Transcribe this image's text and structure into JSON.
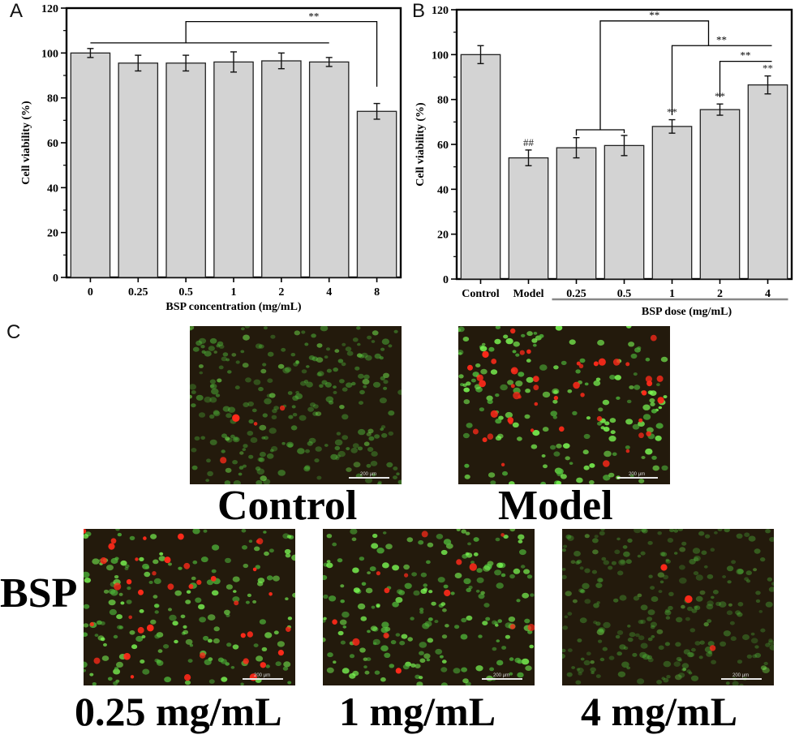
{
  "chart_data": [
    {
      "panel": "A",
      "type": "bar",
      "categories": [
        "0",
        "0.25",
        "0.5",
        "1",
        "2",
        "4",
        "8"
      ],
      "values": [
        100,
        95.5,
        95.5,
        96,
        96.5,
        96,
        74
      ],
      "errors": [
        2,
        3.5,
        3.5,
        4.5,
        3.5,
        2,
        3.5
      ],
      "xlabel": "BSP concentration (mg/mL)",
      "ylabel": "Cell viability (%)",
      "ylim": [
        0,
        120
      ],
      "yticks": [
        "0",
        "20",
        "40",
        "60",
        "80",
        "100",
        "120"
      ],
      "annotations": [
        "**"
      ]
    },
    {
      "panel": "B",
      "type": "bar",
      "categories": [
        "Control",
        "Model",
        "0.25",
        "0.5",
        "1",
        "2",
        "4"
      ],
      "values": [
        100,
        54,
        58.5,
        59.5,
        68,
        75.5,
        86.5
      ],
      "errors": [
        4,
        3.5,
        4.5,
        4.5,
        3,
        2.5,
        4
      ],
      "bar_marks": [
        "",
        "##",
        "",
        "",
        "**",
        "**",
        "**"
      ],
      "xlabel": "BSP dose (mg/mL)",
      "ylabel": "Cell viability (%)",
      "ylim": [
        0,
        120
      ],
      "yticks": [
        "0",
        "20",
        "40",
        "60",
        "80",
        "100",
        "120"
      ],
      "annotations": [
        "**",
        "**",
        "**"
      ]
    }
  ],
  "panels": {
    "A": {
      "letter": "A"
    },
    "B": {
      "letter": "B"
    },
    "C": {
      "letter": "C",
      "images": [
        {
          "caption": "Control",
          "scale": "200 μm"
        },
        {
          "caption": "Model",
          "scale": "200 μm"
        },
        {
          "caption": "0.25 mg/mL",
          "scale": "200 μm"
        },
        {
          "caption": "1 mg/mL",
          "scale": "200 μm"
        },
        {
          "caption": "4 mg/mL",
          "scale": "200 μm"
        }
      ],
      "group_label": "BSP"
    }
  }
}
